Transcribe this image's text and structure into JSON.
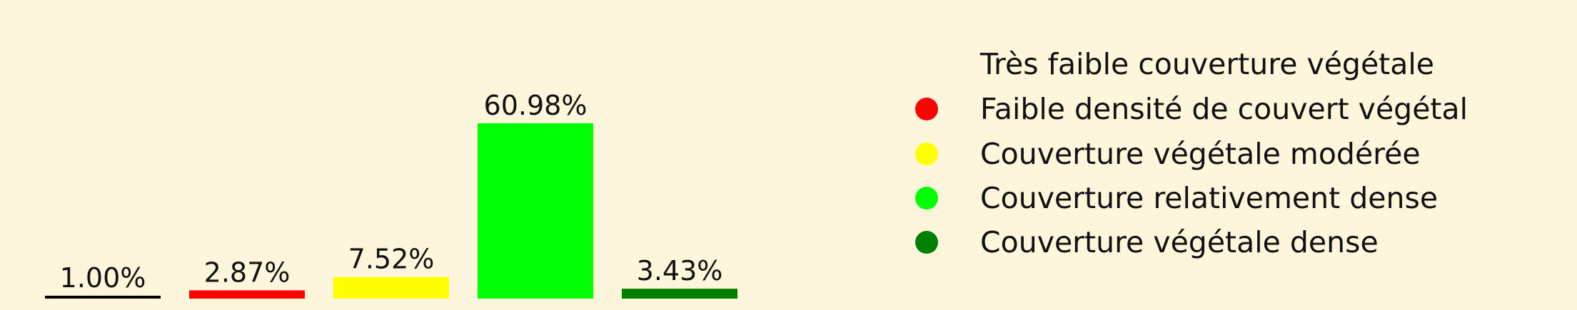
{
  "chart_data": {
    "type": "bar",
    "categories": [
      "Très faible couverture végétale",
      "Faible densité de couvert végétal",
      "Couverture végétale modérée",
      "Couverture relativement dense",
      "Couverture végétale dense"
    ],
    "values": [
      1.0,
      2.87,
      7.52,
      60.98,
      3.43
    ],
    "value_labels": [
      "1.00%",
      "2.87%",
      "7.52%",
      "60.98%",
      "3.43%"
    ],
    "colors": [
      "#000000",
      "#ff0000",
      "#ffff00",
      "#00ff00",
      "#008000"
    ],
    "ylim": [
      0,
      60.98
    ],
    "grid": false,
    "legend_position": "right",
    "background": "#fdf5dc"
  },
  "legend": {
    "items": [
      {
        "label": "Très faible couverture végétale",
        "color": "#000000",
        "marker": "none"
      },
      {
        "label": "Faible densité de couvert végétal",
        "color": "#ff0000",
        "marker": "circle"
      },
      {
        "label": "Couverture végétale modérée",
        "color": "#ffff00",
        "marker": "circle"
      },
      {
        "label": "Couverture relativement dense",
        "color": "#00ff00",
        "marker": "circle"
      },
      {
        "label": "Couverture végétale dense",
        "color": "#008000",
        "marker": "circle"
      }
    ]
  }
}
